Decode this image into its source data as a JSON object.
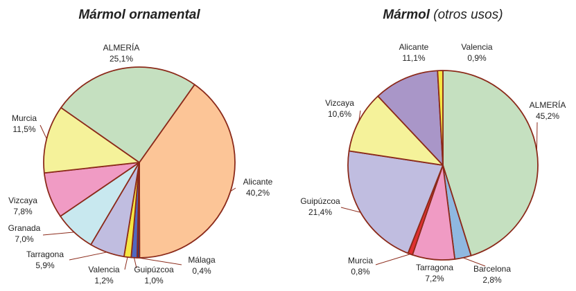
{
  "chart_data": [
    {
      "type": "pie",
      "title": "Mármol ornamental",
      "categories": [
        "Alicante",
        "Málaga",
        "Guipúzcoa",
        "Valencia",
        "Tarragona",
        "Granada",
        "Vizcaya",
        "Murcia",
        "ALMERÍA"
      ],
      "values": [
        40.2,
        0.4,
        1.0,
        1.2,
        5.9,
        7.0,
        7.8,
        11.5,
        25.1
      ],
      "value_labels": [
        "40,2%",
        "0,4%",
        "1,0%",
        "1,2%",
        "5,9%",
        "7,0%",
        "7,8%",
        "11,5%",
        "25,1%"
      ],
      "colors": [
        "#fcc597",
        "#2a3a80",
        "#5068c0",
        "#f5e642",
        "#c0bde0",
        "#c8e8ef",
        "#f09bc4",
        "#f5f29a",
        "#c5e0c0"
      ]
    },
    {
      "type": "pie",
      "title": "Mármol",
      "subtitle": "(otros usos)",
      "categories": [
        "ALMERÍA",
        "Barcelona",
        "Tarragona",
        "Murcia",
        "Guipúzcoa",
        "Vizcaya",
        "Alicante",
        "Valencia"
      ],
      "values": [
        45.2,
        2.8,
        7.2,
        0.8,
        21.4,
        10.6,
        11.1,
        0.9
      ],
      "value_labels": [
        "45,2%",
        "2,8%",
        "7,2%",
        "0,8%",
        "21,4%",
        "10,6%",
        "11,1%",
        "0,9%"
      ],
      "colors": [
        "#c5e0c0",
        "#8fb8e0",
        "#f09bc4",
        "#e03030",
        "#c0bde0",
        "#f5f29a",
        "#a996c8",
        "#f5e642"
      ]
    }
  ]
}
